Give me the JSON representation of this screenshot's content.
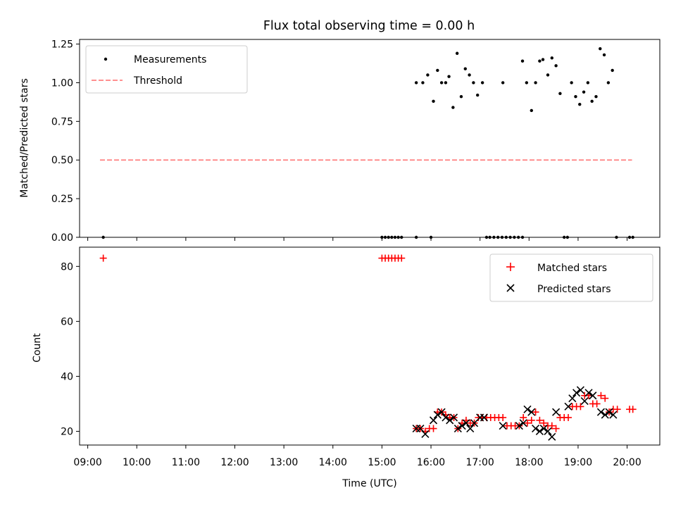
{
  "title": "Flux total observing time = 0.00 h",
  "xlabel": "Time (UTC)",
  "x_ticks": [
    "09:00",
    "10:00",
    "11:00",
    "12:00",
    "13:00",
    "14:00",
    "15:00",
    "16:00",
    "17:00",
    "18:00",
    "19:00",
    "20:00"
  ],
  "colors": {
    "measurements": "#000000",
    "threshold": "#ff8080",
    "matched": "#ff0000",
    "predicted": "#000000"
  },
  "chart_data": [
    {
      "type": "scatter",
      "ylabel": "Matched/Predicted stars",
      "xlim": [
        "08:50",
        "20:40"
      ],
      "ylim": [
        0,
        1.28
      ],
      "y_ticks": [
        "0.00",
        "0.25",
        "0.50",
        "0.75",
        "1.00",
        "1.25"
      ],
      "legend": {
        "placement": "top-left",
        "entries": [
          "Measurements",
          "Threshold"
        ]
      },
      "threshold": {
        "name": "Threshold",
        "value": 0.5,
        "x_range": [
          "09:15",
          "20:06"
        ]
      },
      "series": [
        {
          "name": "Measurements",
          "marker": "dot",
          "points": [
            [
              "09:19",
              0
            ],
            [
              "15:00",
              0
            ],
            [
              "15:04",
              0
            ],
            [
              "15:08",
              0
            ],
            [
              "15:12",
              0
            ],
            [
              "15:16",
              0
            ],
            [
              "15:20",
              0
            ],
            [
              "15:24",
              0
            ],
            [
              "15:42",
              1.0
            ],
            [
              "15:42",
              0
            ],
            [
              "15:50",
              1.0
            ],
            [
              "15:56",
              1.05
            ],
            [
              "16:00",
              0
            ],
            [
              "16:03",
              0.88
            ],
            [
              "16:08",
              1.08
            ],
            [
              "16:13",
              1.0
            ],
            [
              "16:18",
              1.0
            ],
            [
              "16:22",
              1.04
            ],
            [
              "16:27",
              0.84
            ],
            [
              "16:32",
              1.19
            ],
            [
              "16:37",
              0.91
            ],
            [
              "16:42",
              1.09
            ],
            [
              "16:47",
              1.05
            ],
            [
              "16:52",
              1.0
            ],
            [
              "16:57",
              0.92
            ],
            [
              "17:03",
              1.0
            ],
            [
              "17:08",
              0
            ],
            [
              "17:12",
              0
            ],
            [
              "17:17",
              0
            ],
            [
              "17:22",
              0
            ],
            [
              "17:27",
              0
            ],
            [
              "17:28",
              1.0
            ],
            [
              "17:32",
              0
            ],
            [
              "17:37",
              0
            ],
            [
              "17:42",
              0
            ],
            [
              "17:47",
              0
            ],
            [
              "17:52",
              0
            ],
            [
              "17:52",
              1.14
            ],
            [
              "17:57",
              1.0
            ],
            [
              "18:03",
              0.82
            ],
            [
              "18:08",
              1.0
            ],
            [
              "18:13",
              1.14
            ],
            [
              "18:17",
              1.15
            ],
            [
              "18:23",
              1.05
            ],
            [
              "18:28",
              1.16
            ],
            [
              "18:33",
              1.11
            ],
            [
              "18:38",
              0.93
            ],
            [
              "18:43",
              0
            ],
            [
              "18:47",
              0
            ],
            [
              "18:52",
              1.0
            ],
            [
              "18:57",
              0.91
            ],
            [
              "19:02",
              0.86
            ],
            [
              "19:07",
              0.94
            ],
            [
              "19:12",
              1.0
            ],
            [
              "19:17",
              0.88
            ],
            [
              "19:22",
              0.91
            ],
            [
              "19:27",
              1.22
            ],
            [
              "19:32",
              1.18
            ],
            [
              "19:37",
              1.0
            ],
            [
              "19:42",
              1.08
            ],
            [
              "19:47",
              0
            ],
            [
              "20:03",
              0
            ],
            [
              "20:07",
              0
            ]
          ]
        }
      ]
    },
    {
      "type": "scatter",
      "ylabel": "Count",
      "xlim": [
        "08:50",
        "20:40"
      ],
      "ylim": [
        15,
        87
      ],
      "y_ticks": [
        "20",
        "40",
        "60",
        "80"
      ],
      "legend": {
        "placement": "top-right",
        "entries": [
          "Matched stars",
          "Predicted stars"
        ]
      },
      "series": [
        {
          "name": "Matched stars",
          "marker": "plus",
          "points": [
            [
              "09:19",
              83
            ],
            [
              "15:00",
              83
            ],
            [
              "15:04",
              83
            ],
            [
              "15:08",
              83
            ],
            [
              "15:12",
              83
            ],
            [
              "15:16",
              83
            ],
            [
              "15:20",
              83
            ],
            [
              "15:24",
              83
            ],
            [
              "15:42",
              21
            ],
            [
              "15:47",
              21
            ],
            [
              "15:53",
              20
            ],
            [
              "15:58",
              21
            ],
            [
              "16:03",
              21
            ],
            [
              "16:08",
              27
            ],
            [
              "16:13",
              27
            ],
            [
              "16:18",
              26
            ],
            [
              "16:23",
              25
            ],
            [
              "16:28",
              25
            ],
            [
              "16:33",
              21
            ],
            [
              "16:38",
              23
            ],
            [
              "16:43",
              24
            ],
            [
              "16:48",
              23
            ],
            [
              "16:53",
              23
            ],
            [
              "16:58",
              25
            ],
            [
              "17:03",
              25
            ],
            [
              "17:08",
              25
            ],
            [
              "17:13",
              25
            ],
            [
              "17:18",
              25
            ],
            [
              "17:23",
              25
            ],
            [
              "17:28",
              25
            ],
            [
              "17:33",
              22
            ],
            [
              "17:38",
              22
            ],
            [
              "17:43",
              22
            ],
            [
              "17:48",
              22
            ],
            [
              "17:53",
              25
            ],
            [
              "17:58",
              23
            ],
            [
              "18:03",
              24
            ],
            [
              "18:08",
              27
            ],
            [
              "18:13",
              24
            ],
            [
              "18:18",
              23
            ],
            [
              "18:23",
              22
            ],
            [
              "18:28",
              22
            ],
            [
              "18:33",
              21
            ],
            [
              "18:38",
              25
            ],
            [
              "18:43",
              25
            ],
            [
              "18:48",
              25
            ],
            [
              "18:53",
              29
            ],
            [
              "18:58",
              29
            ],
            [
              "19:03",
              29
            ],
            [
              "19:08",
              33
            ],
            [
              "19:13",
              33
            ],
            [
              "19:18",
              30
            ],
            [
              "19:23",
              30
            ],
            [
              "19:28",
              33
            ],
            [
              "19:33",
              32
            ],
            [
              "19:38",
              27
            ],
            [
              "19:43",
              28
            ],
            [
              "19:48",
              28
            ],
            [
              "20:03",
              28
            ],
            [
              "20:07",
              28
            ]
          ]
        },
        {
          "name": "Predicted stars",
          "marker": "x",
          "points": [
            [
              "15:42",
              21
            ],
            [
              "15:47",
              21
            ],
            [
              "15:53",
              19
            ],
            [
              "16:03",
              24
            ],
            [
              "16:08",
              26
            ],
            [
              "16:13",
              27
            ],
            [
              "16:18",
              25
            ],
            [
              "16:23",
              24
            ],
            [
              "16:28",
              25
            ],
            [
              "16:33",
              21
            ],
            [
              "16:38",
              22
            ],
            [
              "16:43",
              23
            ],
            [
              "16:48",
              21
            ],
            [
              "16:53",
              23
            ],
            [
              "17:00",
              25
            ],
            [
              "17:05",
              25
            ],
            [
              "17:28",
              22
            ],
            [
              "17:48",
              22
            ],
            [
              "17:53",
              23
            ],
            [
              "17:58",
              28
            ],
            [
              "18:03",
              27
            ],
            [
              "18:08",
              21
            ],
            [
              "18:13",
              20
            ],
            [
              "18:18",
              21
            ],
            [
              "18:23",
              20
            ],
            [
              "18:28",
              18
            ],
            [
              "18:33",
              27
            ],
            [
              "18:48",
              29
            ],
            [
              "18:53",
              32
            ],
            [
              "18:58",
              34
            ],
            [
              "19:03",
              35
            ],
            [
              "19:08",
              31
            ],
            [
              "19:13",
              34
            ],
            [
              "19:18",
              33
            ],
            [
              "19:28",
              27
            ],
            [
              "19:33",
              26
            ],
            [
              "19:38",
              27
            ],
            [
              "19:43",
              26
            ]
          ]
        }
      ]
    }
  ]
}
